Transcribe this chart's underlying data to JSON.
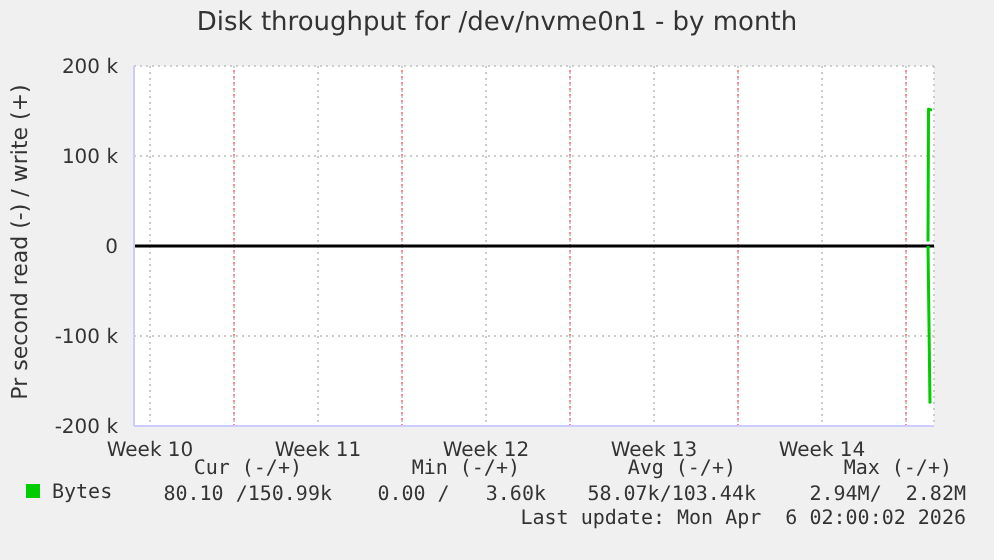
{
  "chart_data": {
    "type": "line",
    "title": "Disk throughput for /dev/nvme0n1 - by month",
    "ylabel": "Pr second read (-) / write (+)",
    "xlim": [
      "2026-03-03T20:00",
      "2026-04-06T04:00"
    ],
    "xticks": [
      {
        "value": "2026-03-04T12:00",
        "label": "Week 10"
      },
      {
        "value": "2026-03-08T00:00",
        "label": null
      },
      {
        "value": "2026-03-11T12:00",
        "label": "Week 11"
      },
      {
        "value": "2026-03-15T00:00",
        "label": null
      },
      {
        "value": "2026-03-18T12:00",
        "label": "Week 12"
      },
      {
        "value": "2026-03-22T00:00",
        "label": null
      },
      {
        "value": "2026-03-25T12:00",
        "label": "Week 13"
      },
      {
        "value": "2026-03-29T00:00",
        "label": null
      },
      {
        "value": "2026-04-01T12:00",
        "label": "Week 14"
      },
      {
        "value": "2026-04-05T00:00",
        "label": null
      }
    ],
    "ylim": [
      -200000,
      200000
    ],
    "yticks": [
      {
        "value": -200000,
        "label": "-200 k"
      },
      {
        "value": -100000,
        "label": "-100 k"
      },
      0,
      {
        "value": 100000,
        "label": "100 k"
      },
      {
        "value": 200000,
        "label": "200 k"
      }
    ],
    "grid": true,
    "legend": "bottom left",
    "ref_lines": [
      {
        "axis": "y",
        "value": 0,
        "color": "#000000"
      }
    ],
    "series": [
      {
        "color": "#00cc00",
        "x": [
          "2026-04-05T22:00",
          "2026-04-06T00:00"
        ],
        "values": [
          0,
          -175000
        ]
      },
      {
        "name": "Bytes",
        "color": "#00cc00",
        "x": [
          "2026-04-05T22:00",
          "2026-04-05T22:30",
          "2026-04-06T02:00"
        ],
        "values": [
          5000,
          152000,
          151000
        ]
      }
    ],
    "annotations": [
      "Cur (-/+)",
      "Min (-/+)",
      "Avg (-/+)",
      "Max (-/+)",
      "80.10 /150.99k",
      "0.00 /   3.60k",
      "58.07k/103.44k",
      "2.94M/  2.82M",
      "Last update: Mon Apr  6 02:00:02 2026"
    ]
  }
}
